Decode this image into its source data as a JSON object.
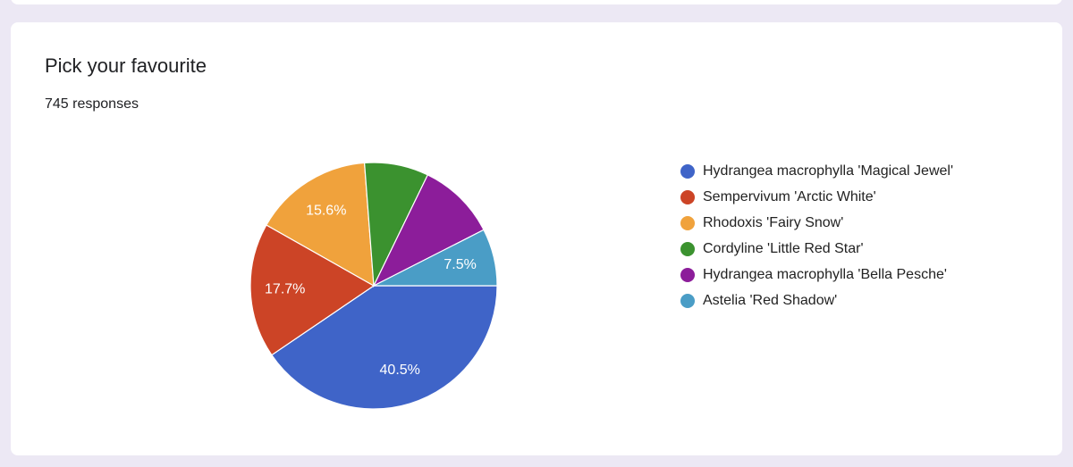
{
  "chart_data": {
    "type": "pie",
    "title": "Pick your favourite",
    "subtitle": "745 responses",
    "categories": [
      "Hydrangea macrophylla 'Magical Jewel'",
      "Sempervivum 'Arctic White'",
      "Rhodoxis 'Fairy Snow'",
      "Cordyline 'Little Red Star'",
      "Hydrangea macrophylla 'Bella Pesche'",
      "Astelia 'Red Shadow'"
    ],
    "values": [
      40.5,
      17.7,
      15.6,
      8.4,
      10.3,
      7.5
    ],
    "value_labels": [
      "40.5%",
      "17.7%",
      "15.6%",
      null,
      null,
      "7.5%"
    ],
    "colors": [
      "#3f64c8",
      "#cc4426",
      "#f0a23c",
      "#3b922f",
      "#8c1d9a",
      "#4a9dc6"
    ]
  }
}
